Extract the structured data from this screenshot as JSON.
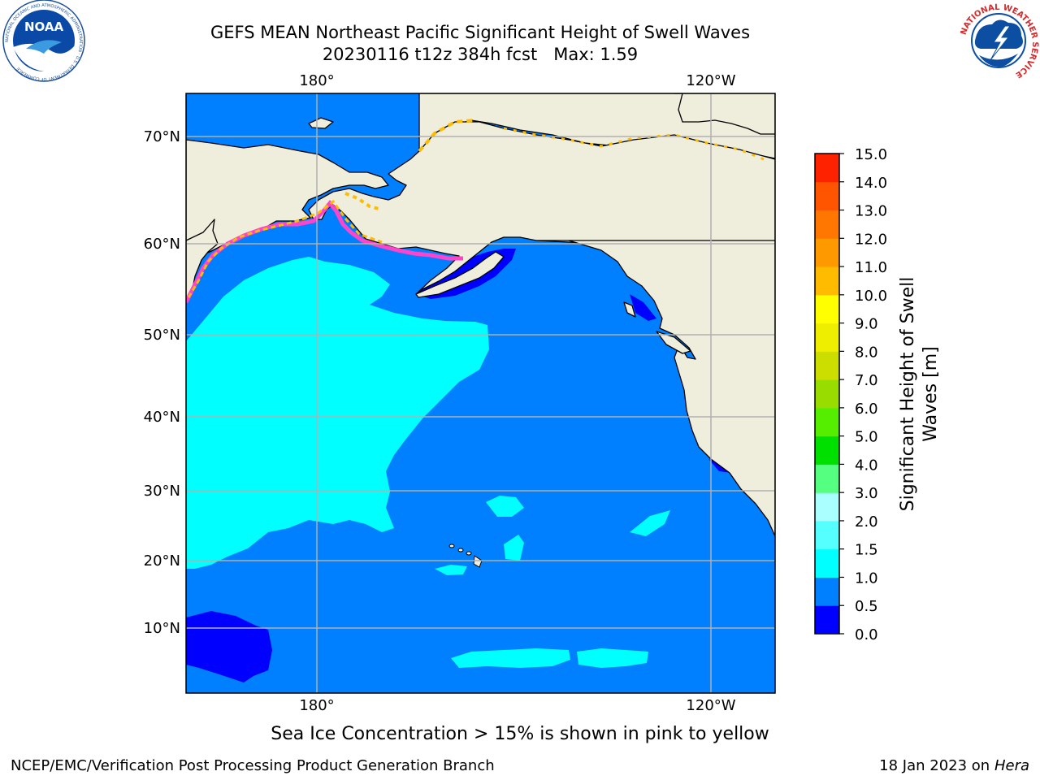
{
  "header": {
    "title_line1": "GEFS MEAN Northeast Pacific Significant Height of Swell Waves",
    "title_line2": "20230116 t12z 384h fcst   Max: 1.59"
  },
  "logos": {
    "left": {
      "name": "NOAA",
      "ring_text": "NATIONAL OCEANIC AND ATMOSPHERIC ADMINISTRATION · U.S. DEPARTMENT OF COMMERCE"
    },
    "right": {
      "ring_text": "NATIONAL WEATHER SERVICE"
    }
  },
  "map": {
    "top_lon_labels": [
      "180°",
      "120°W"
    ],
    "bottom_lon_labels": [
      "180°",
      "120°W"
    ],
    "lat_labels": [
      "70°N",
      "60°N",
      "50°N",
      "40°N",
      "30°N",
      "20°N",
      "10°N"
    ],
    "colors": {
      "land": "#efeddc",
      "ocean": "#0080ff",
      "low": "#0000ff",
      "cyan": "#00ffff",
      "grid": "#b0b0b0"
    }
  },
  "colorbar": {
    "label_line1": "Significant Height of Swell",
    "label_line2": "Waves [m]",
    "ticks": [
      "15.0",
      "14.0",
      "13.0",
      "12.0",
      "11.0",
      "10.0",
      "9.0",
      "8.0",
      "7.0",
      "6.0",
      "5.0",
      "4.0",
      "3.0",
      "2.0",
      "1.5",
      "1.0",
      "0.5",
      "0.0"
    ],
    "colors_bottom_to_top": [
      "#0000ff",
      "#0080ff",
      "#00ffff",
      "#55ffff",
      "#aaffff",
      "#55ff80",
      "#00e000",
      "#55ee00",
      "#99dd00",
      "#ccdd00",
      "#eeee00",
      "#ffff00",
      "#ffbb00",
      "#ff9900",
      "#ff7700",
      "#ff5500",
      "#ff2200"
    ]
  },
  "caption": "Sea Ice Concentration > 15% is shown in pink to yellow",
  "footer": {
    "left": "NCEP/EMC/Verification Post Processing Product Generation Branch",
    "right_prefix": "18 Jan 2023 on ",
    "right_host": "Hera"
  }
}
